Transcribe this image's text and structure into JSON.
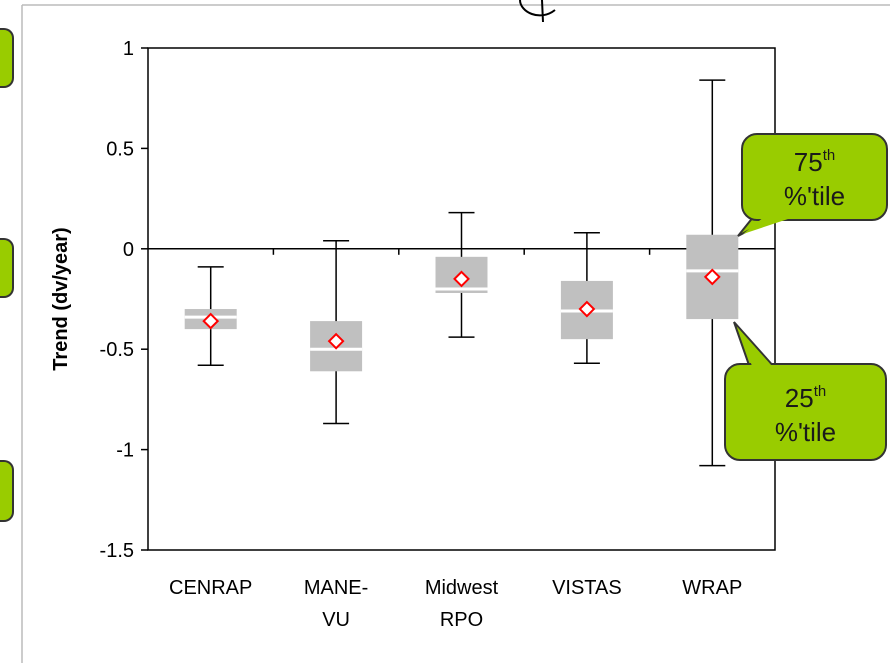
{
  "chart_data": {
    "type": "box",
    "ylabel": "Trend (dv/year)",
    "ylim": [
      -1.5,
      1
    ],
    "yticks": [
      1,
      0.5,
      0,
      -0.5,
      -1,
      -1.5
    ],
    "ytick_labels": [
      "1",
      "0.5",
      "0",
      "-0.5",
      "-1",
      "-1.5"
    ],
    "categories": [
      {
        "lines": [
          "CENRAP"
        ]
      },
      {
        "lines": [
          "MANE-",
          "VU"
        ]
      },
      {
        "lines": [
          "Midwest",
          "RPO"
        ]
      },
      {
        "lines": [
          "VISTAS"
        ]
      },
      {
        "lines": [
          "WRAP"
        ]
      }
    ],
    "series": [
      {
        "min": -0.58,
        "q1": -0.4,
        "median": -0.34,
        "q3": -0.3,
        "max": -0.09,
        "mean": -0.36
      },
      {
        "min": -0.87,
        "q1": -0.61,
        "median": -0.5,
        "q3": -0.36,
        "max": 0.04,
        "mean": -0.46
      },
      {
        "min": -0.44,
        "q1": -0.22,
        "median": -0.2,
        "q3": -0.04,
        "max": 0.18,
        "mean": -0.15
      },
      {
        "min": -0.57,
        "q1": -0.45,
        "median": -0.31,
        "q3": -0.16,
        "max": 0.08,
        "mean": -0.3
      },
      {
        "min": -1.08,
        "q1": -0.35,
        "median": -0.11,
        "q3": 0.07,
        "max": 0.84,
        "mean": -0.14
      }
    ],
    "colors": {
      "box": "#c0c0c0",
      "median": "#ffffff",
      "mean_marker": "#ff0000",
      "whisker": "#000000"
    }
  },
  "callouts": {
    "q75": {
      "num": "75",
      "sup": "th",
      "line2": "%'tile"
    },
    "q25": {
      "num": "25",
      "sup": "th",
      "line2": "%'tile"
    },
    "fill": "#99cc00"
  }
}
